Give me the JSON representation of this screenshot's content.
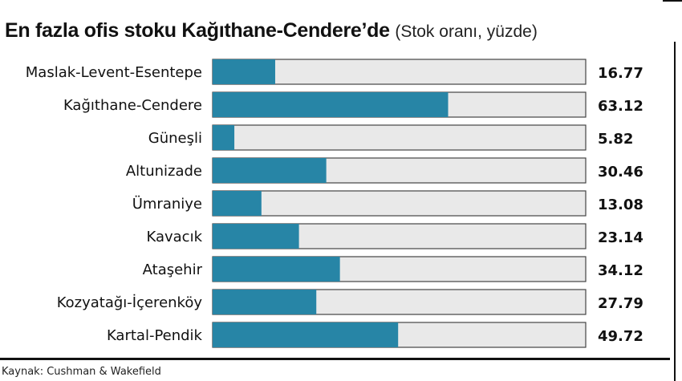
{
  "title": "En fazla ofis stoku Kağıthane-Cendere’de",
  "subtitle": "(Stok oranı, yüzde)",
  "source": "Kaynak: Cushman & Wakefield",
  "colors": {
    "bar_fill": "#2785a6",
    "bar_track": "#e9e9e9",
    "bar_border": "#444444",
    "text": "#111111"
  },
  "chart_data": {
    "type": "bar",
    "orientation": "horizontal",
    "title": "En fazla ofis stoku Kağıthane-Cendere’de",
    "subtitle": "(Stok oranı, yüzde)",
    "xlim": [
      0,
      100
    ],
    "categories": [
      "Maslak-Levent-Esentepe",
      "Kağıthane-Cendere",
      "Güneşli",
      "Altunizade",
      "Ümraniye",
      "Kavacık",
      "Ataşehir",
      "Kozyatağı-İçerenköy",
      "Kartal-Pendik"
    ],
    "values": [
      16.77,
      63.12,
      5.82,
      30.46,
      13.08,
      23.14,
      34.12,
      27.79,
      49.72
    ],
    "value_labels": [
      "16.77",
      "63.12",
      "5.82",
      "30.46",
      "13.08",
      "23.14",
      "34.12",
      "27.79",
      "49.72"
    ]
  }
}
